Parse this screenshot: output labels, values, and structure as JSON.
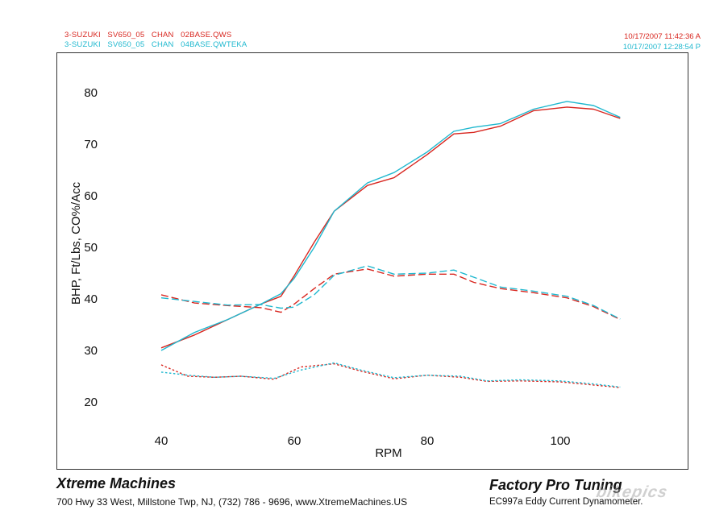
{
  "header": {
    "run1_label": "3-SUZUKI   SV650_05   CHAN   02BASE.QWS",
    "run2_label": "3-SUZUKI   SV650_05   CHAN   04BASE.QWTEKA",
    "run1_date": "10/17/2007 11:42:36 A",
    "run2_date": "10/17/2007 12:28:54 P",
    "run1_color": "#d8261f",
    "run2_color": "#1fb8cf"
  },
  "footer": {
    "left_title": "Xtreme Machines",
    "left_address": "700 Hwy 33 West, Millstone Twp, NJ, (732) 786 - 9696, www.XtremeMachines.US",
    "right_title": "Factory Pro Tuning",
    "right_model": "EC997a  Eddy Current Dynamometer.",
    "watermark": "bikepics"
  },
  "chart_data": {
    "type": "line",
    "title": "",
    "xlabel": "RPM",
    "ylabel": "BHP, Ft/Lbs, CO%/Acc",
    "xlim": [
      40,
      112
    ],
    "ylim": [
      17,
      85
    ],
    "xticks": [
      40,
      60,
      80,
      100
    ],
    "yticks": [
      20,
      30,
      40,
      50,
      60,
      70,
      80
    ],
    "grid": false,
    "legend": "none",
    "series": [
      {
        "name": "02BASE.QWS",
        "measure": "bhp",
        "style": "solid",
        "color": "#d8261f",
        "x": [
          40,
          45,
          50,
          55,
          58,
          60,
          63,
          66,
          71,
          75,
          80,
          84,
          87,
          91,
          96,
          101,
          105,
          109
        ],
        "y": [
          30.5,
          33,
          36,
          39,
          40.5,
          44.5,
          51,
          57,
          62,
          63.5,
          68,
          72,
          72.3,
          73.5,
          76.5,
          77.2,
          76.8,
          75
        ]
      },
      {
        "name": "04BASE.QWTEKA",
        "measure": "bhp",
        "style": "solid",
        "color": "#1fb8cf",
        "x": [
          40,
          45,
          50,
          55,
          58,
          60,
          63,
          66,
          71,
          75,
          80,
          84,
          87,
          91,
          96,
          101,
          105,
          109
        ],
        "y": [
          30,
          33.5,
          36,
          39,
          41,
          44,
          50,
          57,
          62.5,
          64.5,
          68.5,
          72.5,
          73.3,
          74,
          76.8,
          78.3,
          77.5,
          75.2
        ]
      },
      {
        "name": "02BASE.QWS",
        "measure": "torque",
        "style": "dashed",
        "color": "#d8261f",
        "x": [
          40,
          45,
          50,
          55,
          58,
          60,
          63,
          66,
          71,
          75,
          80,
          84,
          87,
          91,
          96,
          101,
          105,
          109
        ],
        "y": [
          40.8,
          39.2,
          38.7,
          38.3,
          37.4,
          39,
          42,
          44.8,
          45.8,
          44.4,
          44.8,
          44.8,
          43.2,
          42,
          41.2,
          40.2,
          38.5,
          36
        ]
      },
      {
        "name": "04BASE.QWTEKA",
        "measure": "torque",
        "style": "dashed",
        "color": "#1fb8cf",
        "x": [
          40,
          45,
          50,
          55,
          58,
          60,
          63,
          66,
          71,
          75,
          80,
          84,
          87,
          91,
          96,
          101,
          105,
          109
        ],
        "y": [
          40.2,
          39.5,
          38.8,
          38.9,
          38.2,
          38.4,
          40.8,
          44.6,
          46.4,
          44.8,
          45,
          45.6,
          44.2,
          42.3,
          41.5,
          40.5,
          38.7,
          36.1
        ]
      },
      {
        "name": "02BASE.QWS",
        "measure": "co",
        "style": "dotted",
        "color": "#d8261f",
        "x": [
          40,
          44,
          48,
          52,
          57,
          61,
          66,
          70,
          75,
          80,
          85,
          89,
          94,
          100,
          105,
          109
        ],
        "y": [
          27.2,
          25,
          24.8,
          25,
          24.4,
          26.8,
          27.4,
          26,
          24.5,
          25.2,
          24.8,
          24,
          24.1,
          23.9,
          23.3,
          22.8
        ]
      },
      {
        "name": "04BASE.QWTEKA",
        "measure": "co",
        "style": "dotted",
        "color": "#1fb8cf",
        "x": [
          40,
          44,
          48,
          52,
          57,
          61,
          66,
          70,
          75,
          80,
          85,
          89,
          94,
          100,
          105,
          109
        ],
        "y": [
          25.8,
          25.2,
          24.8,
          25,
          24.6,
          26.2,
          27.6,
          26.2,
          24.7,
          25.2,
          25,
          24.1,
          24.3,
          24.1,
          23.5,
          22.9
        ]
      }
    ]
  }
}
